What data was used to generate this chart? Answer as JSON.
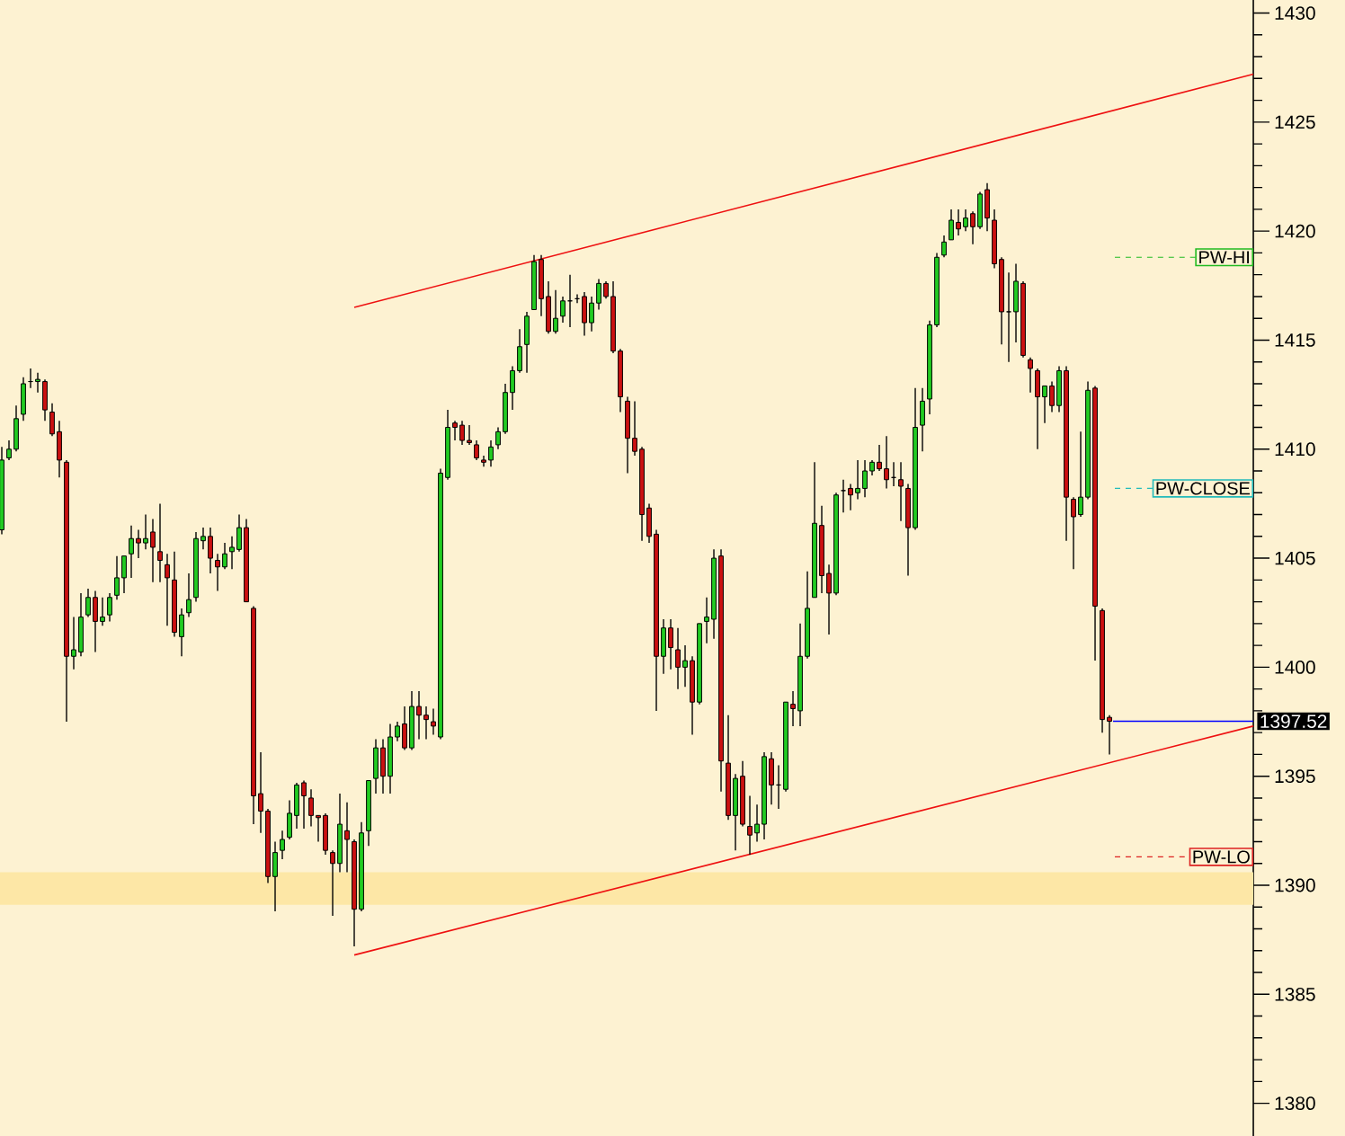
{
  "chart_data": {
    "type": "candlestick",
    "categories": [
      null,
      null,
      null,
      null,
      null,
      null,
      null,
      null,
      null,
      null,
      null,
      null,
      null,
      null,
      null,
      null,
      null,
      null,
      null,
      null,
      null,
      null,
      null,
      null,
      null,
      null,
      null,
      null,
      null,
      null,
      null,
      null,
      null,
      null,
      null,
      null,
      null,
      null,
      null,
      null,
      null,
      null,
      null,
      null,
      null,
      null,
      null,
      null,
      null,
      null,
      null,
      null,
      null,
      null,
      null,
      null,
      null,
      null,
      null,
      null,
      null,
      null,
      null,
      null,
      null,
      null,
      null,
      null,
      null,
      null,
      null,
      null,
      null,
      null,
      null,
      null,
      null,
      null,
      null,
      null,
      null,
      null,
      null,
      null,
      null,
      null,
      null,
      null,
      null,
      null,
      null,
      null,
      null,
      null,
      null,
      null,
      null,
      null,
      null,
      null,
      null,
      null,
      null,
      null,
      null,
      null,
      null,
      null,
      null,
      null,
      null,
      null,
      null,
      null,
      null,
      null,
      null,
      null,
      null,
      null,
      null,
      null,
      null,
      null,
      null,
      null,
      null,
      null,
      null,
      null,
      null,
      null,
      null,
      null,
      null,
      null,
      null,
      null,
      null,
      null,
      null,
      null,
      null,
      null,
      null,
      null,
      null,
      null,
      null,
      null,
      null,
      null,
      null,
      null,
      null,
      null,
      null,
      null,
      null,
      null,
      null,
      null,
      null,
      null,
      null,
      null,
      null,
      null,
      null,
      null,
      null,
      null,
      null,
      null,
      null
    ],
    "ohlc": [
      [
        1406.3,
        1410.1,
        1406.1,
        1409.5
      ],
      [
        1409.6,
        1410.4,
        1409.5,
        1410.0
      ],
      [
        1410.0,
        1412.0,
        1409.9,
        1411.4
      ],
      [
        1411.6,
        1413.3,
        1411.3,
        1413.0
      ],
      [
        1413.1,
        1413.7,
        1412.8,
        1413.1
      ],
      [
        1413.1,
        1413.5,
        1412.6,
        1413.2
      ],
      [
        1413.1,
        1413.2,
        1411.3,
        1411.8
      ],
      [
        1411.7,
        1412.1,
        1410.6,
        1410.7
      ],
      [
        1410.8,
        1411.3,
        1408.7,
        1409.5
      ],
      [
        1409.4,
        1409.5,
        1397.5,
        1400.5
      ],
      [
        1400.5,
        1402.3,
        1399.9,
        1400.8
      ],
      [
        1400.7,
        1403.4,
        1400.5,
        1402.3
      ],
      [
        1402.4,
        1403.6,
        1402.3,
        1403.2
      ],
      [
        1403.2,
        1403.5,
        1400.7,
        1402.1
      ],
      [
        1402.1,
        1403.2,
        1401.9,
        1402.3
      ],
      [
        1402.4,
        1403.4,
        1402.1,
        1403.2
      ],
      [
        1403.3,
        1405.1,
        1403.1,
        1404.1
      ],
      [
        1404.1,
        1405.1,
        1403.4,
        1405.1
      ],
      [
        1405.2,
        1406.5,
        1404.1,
        1405.9
      ],
      [
        1405.9,
        1406.3,
        1405.0,
        1405.7
      ],
      [
        1405.7,
        1407.0,
        1405.4,
        1405.9
      ],
      [
        1406.2,
        1406.8,
        1403.9,
        1405.5
      ],
      [
        1405.3,
        1407.5,
        1403.9,
        1404.9
      ],
      [
        1404.7,
        1405.2,
        1401.9,
        1404.1
      ],
      [
        1404.0,
        1405.3,
        1401.4,
        1401.6
      ],
      [
        1401.4,
        1402.7,
        1400.5,
        1402.4
      ],
      [
        1402.5,
        1404.3,
        1402.3,
        1403.1
      ],
      [
        1403.2,
        1406.2,
        1403.0,
        1405.9
      ],
      [
        1405.8,
        1406.4,
        1405.4,
        1406.0
      ],
      [
        1406.0,
        1406.4,
        1404.3,
        1405.0
      ],
      [
        1404.9,
        1405.2,
        1403.5,
        1404.6
      ],
      [
        1404.6,
        1405.7,
        1404.5,
        1405.2
      ],
      [
        1405.3,
        1406.0,
        1404.5,
        1405.5
      ],
      [
        1405.4,
        1407.0,
        1405.3,
        1406.4
      ],
      [
        1406.4,
        1406.8,
        1403.0,
        1403.0
      ],
      [
        1402.7,
        1402.8,
        1392.8,
        1394.1
      ],
      [
        1394.2,
        1396.1,
        1392.4,
        1393.4
      ],
      [
        1393.4,
        1393.5,
        1390.1,
        1390.4
      ],
      [
        1390.4,
        1392.0,
        1388.8,
        1391.5
      ],
      [
        1391.6,
        1392.5,
        1391.2,
        1392.1
      ],
      [
        1392.2,
        1393.9,
        1392.1,
        1393.3
      ],
      [
        1393.2,
        1394.7,
        1392.6,
        1394.6
      ],
      [
        1394.7,
        1394.8,
        1392.6,
        1394.1
      ],
      [
        1394.0,
        1394.4,
        1392.7,
        1393.2
      ],
      [
        1393.2,
        1393.2,
        1392.0,
        1393.1
      ],
      [
        1393.2,
        1393.3,
        1391.4,
        1391.6
      ],
      [
        1391.5,
        1391.6,
        1388.6,
        1391.0
      ],
      [
        1391.0,
        1394.2,
        1390.6,
        1392.8
      ],
      [
        1392.5,
        1393.8,
        1390.6,
        1392.1
      ],
      [
        1392.0,
        1392.1,
        1387.2,
        1388.9
      ],
      [
        1388.9,
        1392.9,
        1388.8,
        1392.4
      ],
      [
        1392.5,
        1394.8,
        1391.8,
        1394.8
      ],
      [
        1394.9,
        1396.7,
        1394.2,
        1396.3
      ],
      [
        1396.3,
        1396.7,
        1394.2,
        1395.0
      ],
      [
        1395.0,
        1397.4,
        1394.2,
        1396.8
      ],
      [
        1396.8,
        1397.5,
        1396.6,
        1397.3
      ],
      [
        1397.4,
        1398.2,
        1396.2,
        1396.3
      ],
      [
        1396.3,
        1398.9,
        1396.2,
        1398.2
      ],
      [
        1398.2,
        1398.9,
        1396.7,
        1397.8
      ],
      [
        1397.8,
        1398.2,
        1396.7,
        1397.6
      ],
      [
        1397.5,
        1398.1,
        1396.9,
        1397.3
      ],
      [
        1396.8,
        1409.1,
        1396.7,
        1408.9
      ],
      [
        1408.7,
        1411.8,
        1408.6,
        1411.0
      ],
      [
        1411.2,
        1411.3,
        1410.4,
        1411.0
      ],
      [
        1411.1,
        1411.3,
        1410.2,
        1410.4
      ],
      [
        1410.4,
        1411.1,
        1410.2,
        1410.3
      ],
      [
        1410.2,
        1410.4,
        1409.5,
        1409.6
      ],
      [
        1409.5,
        1409.7,
        1409.2,
        1409.4
      ],
      [
        1409.5,
        1410.4,
        1409.2,
        1410.1
      ],
      [
        1410.2,
        1411.0,
        1410.0,
        1410.8
      ],
      [
        1410.8,
        1413.0,
        1410.7,
        1412.6
      ],
      [
        1412.6,
        1413.8,
        1411.8,
        1413.6
      ],
      [
        1413.6,
        1415.5,
        1413.5,
        1414.7
      ],
      [
        1414.8,
        1416.3,
        1413.5,
        1416.1
      ],
      [
        1416.4,
        1418.9,
        1416.4,
        1418.6
      ],
      [
        1418.7,
        1418.9,
        1416.1,
        1416.9
      ],
      [
        1417.0,
        1417.7,
        1415.3,
        1415.4
      ],
      [
        1415.4,
        1417.3,
        1415.3,
        1416.0
      ],
      [
        1416.1,
        1417.0,
        1415.8,
        1416.8
      ],
      [
        1416.8,
        1418.0,
        1415.6,
        1416.8
      ],
      [
        1416.9,
        1417.1,
        1416.7,
        1416.9
      ],
      [
        1417.0,
        1417.2,
        1415.2,
        1415.8
      ],
      [
        1415.8,
        1417.0,
        1415.4,
        1416.7
      ],
      [
        1416.7,
        1417.8,
        1416.4,
        1417.6
      ],
      [
        1417.6,
        1417.7,
        1416.9,
        1417.0
      ],
      [
        1417.0,
        1417.7,
        1414.4,
        1414.5
      ],
      [
        1414.5,
        1414.6,
        1411.7,
        1412.4
      ],
      [
        1412.2,
        1412.4,
        1408.9,
        1410.5
      ],
      [
        1410.5,
        1412.2,
        1409.7,
        1409.9
      ],
      [
        1410.0,
        1410.1,
        1405.8,
        1407.0
      ],
      [
        1407.3,
        1407.5,
        1405.7,
        1406.0
      ],
      [
        1406.1,
        1406.3,
        1398.0,
        1400.5
      ],
      [
        1400.5,
        1402.2,
        1399.7,
        1401.8
      ],
      [
        1401.8,
        1402.2,
        1399.9,
        1400.9
      ],
      [
        1400.8,
        1401.8,
        1399.0,
        1400.0
      ],
      [
        1400.0,
        1401.0,
        1399.1,
        1400.3
      ],
      [
        1400.3,
        1400.5,
        1396.9,
        1398.4
      ],
      [
        1398.4,
        1402.0,
        1398.3,
        1402.0
      ],
      [
        1402.1,
        1403.2,
        1401.1,
        1402.3
      ],
      [
        1402.2,
        1405.4,
        1401.3,
        1405.0
      ],
      [
        1405.1,
        1405.4,
        1394.3,
        1395.7
      ],
      [
        1395.6,
        1397.8,
        1393.0,
        1393.2
      ],
      [
        1393.2,
        1395.1,
        1391.6,
        1394.9
      ],
      [
        1395.0,
        1395.7,
        1392.7,
        1392.8
      ],
      [
        1392.7,
        1394.1,
        1391.4,
        1392.3
      ],
      [
        1392.4,
        1393.7,
        1392.0,
        1392.8
      ],
      [
        1392.8,
        1396.1,
        1392.1,
        1395.9
      ],
      [
        1395.8,
        1396.1,
        1393.7,
        1394.6
      ],
      [
        1394.6,
        1395.5,
        1393.5,
        1394.6
      ],
      [
        1394.4,
        1398.4,
        1394.3,
        1398.4
      ],
      [
        1398.3,
        1398.9,
        1397.3,
        1398.1
      ],
      [
        1398.0,
        1402.0,
        1397.3,
        1400.5
      ],
      [
        1400.5,
        1404.4,
        1400.4,
        1402.7
      ],
      [
        1403.2,
        1409.4,
        1403.2,
        1406.6
      ],
      [
        1406.5,
        1407.4,
        1403.4,
        1404.2
      ],
      [
        1404.3,
        1404.7,
        1401.5,
        1403.4
      ],
      [
        1403.4,
        1408.0,
        1403.3,
        1407.9
      ],
      [
        1408.1,
        1408.6,
        1407.1,
        1408.1
      ],
      [
        1408.2,
        1408.4,
        1407.2,
        1407.9
      ],
      [
        1408.0,
        1409.5,
        1407.7,
        1408.2
      ],
      [
        1408.2,
        1409.5,
        1407.8,
        1409.0
      ],
      [
        1409.0,
        1409.5,
        1408.8,
        1409.4
      ],
      [
        1409.4,
        1410.2,
        1409.0,
        1409.1
      ],
      [
        1409.1,
        1410.6,
        1408.2,
        1408.6
      ],
      [
        1408.7,
        1409.4,
        1408.3,
        1408.7
      ],
      [
        1408.6,
        1409.4,
        1406.7,
        1408.3
      ],
      [
        1408.2,
        1408.4,
        1404.2,
        1406.4
      ],
      [
        1406.4,
        1412.8,
        1406.3,
        1411.0
      ],
      [
        1411.1,
        1412.8,
        1409.9,
        1412.2
      ],
      [
        1412.3,
        1415.9,
        1411.6,
        1415.7
      ],
      [
        1415.7,
        1419.0,
        1415.6,
        1418.8
      ],
      [
        1418.9,
        1419.8,
        1418.8,
        1419.5
      ],
      [
        1419.6,
        1421.0,
        1419.6,
        1420.5
      ],
      [
        1420.4,
        1421.0,
        1419.8,
        1420.1
      ],
      [
        1420.2,
        1421.0,
        1420.0,
        1420.6
      ],
      [
        1420.8,
        1420.9,
        1419.4,
        1420.2
      ],
      [
        1420.2,
        1421.8,
        1420.1,
        1421.7
      ],
      [
        1421.9,
        1422.2,
        1420.0,
        1420.6
      ],
      [
        1420.5,
        1421.0,
        1418.3,
        1418.5
      ],
      [
        1418.7,
        1418.8,
        1414.8,
        1416.3
      ],
      [
        1416.3,
        1418.1,
        1414.0,
        1416.3
      ],
      [
        1416.3,
        1418.5,
        1414.9,
        1417.7
      ],
      [
        1417.6,
        1417.7,
        1414.2,
        1414.3
      ],
      [
        1414.1,
        1414.2,
        1412.6,
        1413.7
      ],
      [
        1413.6,
        1413.7,
        1410.0,
        1412.4
      ],
      [
        1412.4,
        1412.9,
        1411.2,
        1412.9
      ],
      [
        1412.9,
        1413.1,
        1411.7,
        1412.0
      ],
      [
        1412.0,
        1413.8,
        1411.7,
        1413.6
      ],
      [
        1413.6,
        1413.8,
        1405.8,
        1407.8
      ],
      [
        1407.7,
        1407.8,
        1404.5,
        1406.9
      ],
      [
        1407.0,
        1410.8,
        1406.9,
        1407.8
      ],
      [
        1407.8,
        1413.1,
        1407.7,
        1412.7
      ],
      [
        1412.8,
        1412.9,
        1400.3,
        1402.8
      ],
      [
        1402.6,
        1402.7,
        1397.0,
        1397.6
      ],
      [
        1397.7,
        1397.8,
        1396.0,
        1397.52
      ],
      null,
      null,
      null,
      null,
      null,
      null,
      null,
      null,
      null,
      null,
      null,
      null,
      null,
      null,
      null,
      null,
      null,
      null,
      null,
      null
    ],
    "series": [
      {
        "type": "line",
        "color": "#ee1111",
        "values": [
          null,
          null,
          null,
          null,
          null,
          null,
          null,
          null,
          null,
          null,
          null,
          null,
          null,
          null,
          null,
          null,
          null,
          null,
          null,
          null,
          null,
          null,
          null,
          null,
          null,
          null,
          null,
          null,
          null,
          null,
          null,
          null,
          null,
          null,
          null,
          null,
          null,
          null,
          null,
          null,
          null,
          null,
          null,
          null,
          null,
          null,
          null,
          null,
          null,
          1416.5,
          null,
          null,
          null,
          null,
          null,
          null,
          null,
          null,
          null,
          null,
          null,
          null,
          null,
          null,
          null,
          null,
          null,
          null,
          null,
          null,
          null,
          null,
          null,
          null,
          null,
          null,
          null,
          null,
          null,
          null,
          null,
          null,
          null,
          null,
          null,
          null,
          null,
          null,
          null,
          null,
          null,
          null,
          null,
          null,
          null,
          null,
          null,
          null,
          null,
          null,
          null,
          null,
          null,
          null,
          null,
          null,
          null,
          null,
          null,
          null,
          null,
          null,
          null,
          null,
          null,
          null,
          null,
          null,
          null,
          null,
          null,
          null,
          null,
          null,
          null,
          null,
          null,
          null,
          null,
          null,
          null,
          null,
          null,
          null,
          null,
          null,
          null,
          null,
          null,
          null,
          null,
          null,
          null,
          null,
          null,
          null,
          null,
          null,
          null,
          null,
          null,
          null,
          null,
          null,
          null,
          null,
          null,
          null,
          null,
          null,
          null,
          null,
          null,
          null,
          null,
          null,
          null,
          null,
          null,
          null,
          null,
          null,
          null,
          null,
          1427.2
        ]
      },
      {
        "type": "line",
        "color": "#ee1111",
        "values": [
          null,
          null,
          null,
          null,
          null,
          null,
          null,
          null,
          null,
          null,
          null,
          null,
          null,
          null,
          null,
          null,
          null,
          null,
          null,
          null,
          null,
          null,
          null,
          null,
          null,
          null,
          null,
          null,
          null,
          null,
          null,
          null,
          null,
          null,
          null,
          null,
          null,
          null,
          null,
          null,
          null,
          null,
          null,
          null,
          null,
          null,
          null,
          null,
          null,
          1386.8,
          null,
          null,
          null,
          null,
          null,
          null,
          null,
          null,
          null,
          null,
          null,
          null,
          null,
          null,
          null,
          null,
          null,
          null,
          null,
          null,
          null,
          null,
          null,
          null,
          null,
          null,
          null,
          null,
          null,
          null,
          null,
          null,
          null,
          null,
          null,
          null,
          null,
          null,
          null,
          null,
          null,
          null,
          null,
          null,
          null,
          null,
          null,
          null,
          null,
          null,
          null,
          null,
          null,
          null,
          null,
          null,
          null,
          null,
          null,
          null,
          null,
          null,
          null,
          null,
          null,
          null,
          null,
          null,
          null,
          null,
          null,
          null,
          null,
          null,
          null,
          null,
          null,
          null,
          null,
          null,
          null,
          null,
          null,
          null,
          null,
          null,
          null,
          null,
          null,
          null,
          null,
          null,
          null,
          null,
          null,
          null,
          null,
          null,
          null,
          null,
          null,
          null,
          null,
          null,
          null,
          null,
          null,
          null,
          null,
          null,
          null,
          null,
          null,
          null,
          null,
          null,
          null,
          null,
          null,
          null,
          null,
          null,
          null,
          null,
          1397.3
        ]
      }
    ],
    "ylim": [
      1378.5,
      1430.6
    ],
    "yticks": [
      1380,
      1385,
      1390,
      1395,
      1400,
      1405,
      1410,
      1415,
      1420,
      1425,
      1430
    ],
    "ref_lines": [
      {
        "axis": "y",
        "value": 1418.8,
        "label": "PW-HI",
        "color": "#22bb22",
        "line_style": "dashed"
      },
      {
        "axis": "y",
        "value": 1408.2,
        "label": "PW-CLOSE",
        "color": "#22bbbb",
        "line_style": "dashed"
      },
      {
        "axis": "y",
        "value": 1391.3,
        "label": "PW-LO",
        "color": "#dd2222",
        "line_style": "dashed"
      },
      {
        "axis": "y",
        "value": 1397.52,
        "label": "1397.52",
        "color": "#0000ff",
        "line_style": "solid"
      }
    ],
    "bands": [
      {
        "axis": "y",
        "from": 1389.1,
        "to": 1390.6,
        "color": "#fde7a6"
      }
    ],
    "grid": false
  }
}
